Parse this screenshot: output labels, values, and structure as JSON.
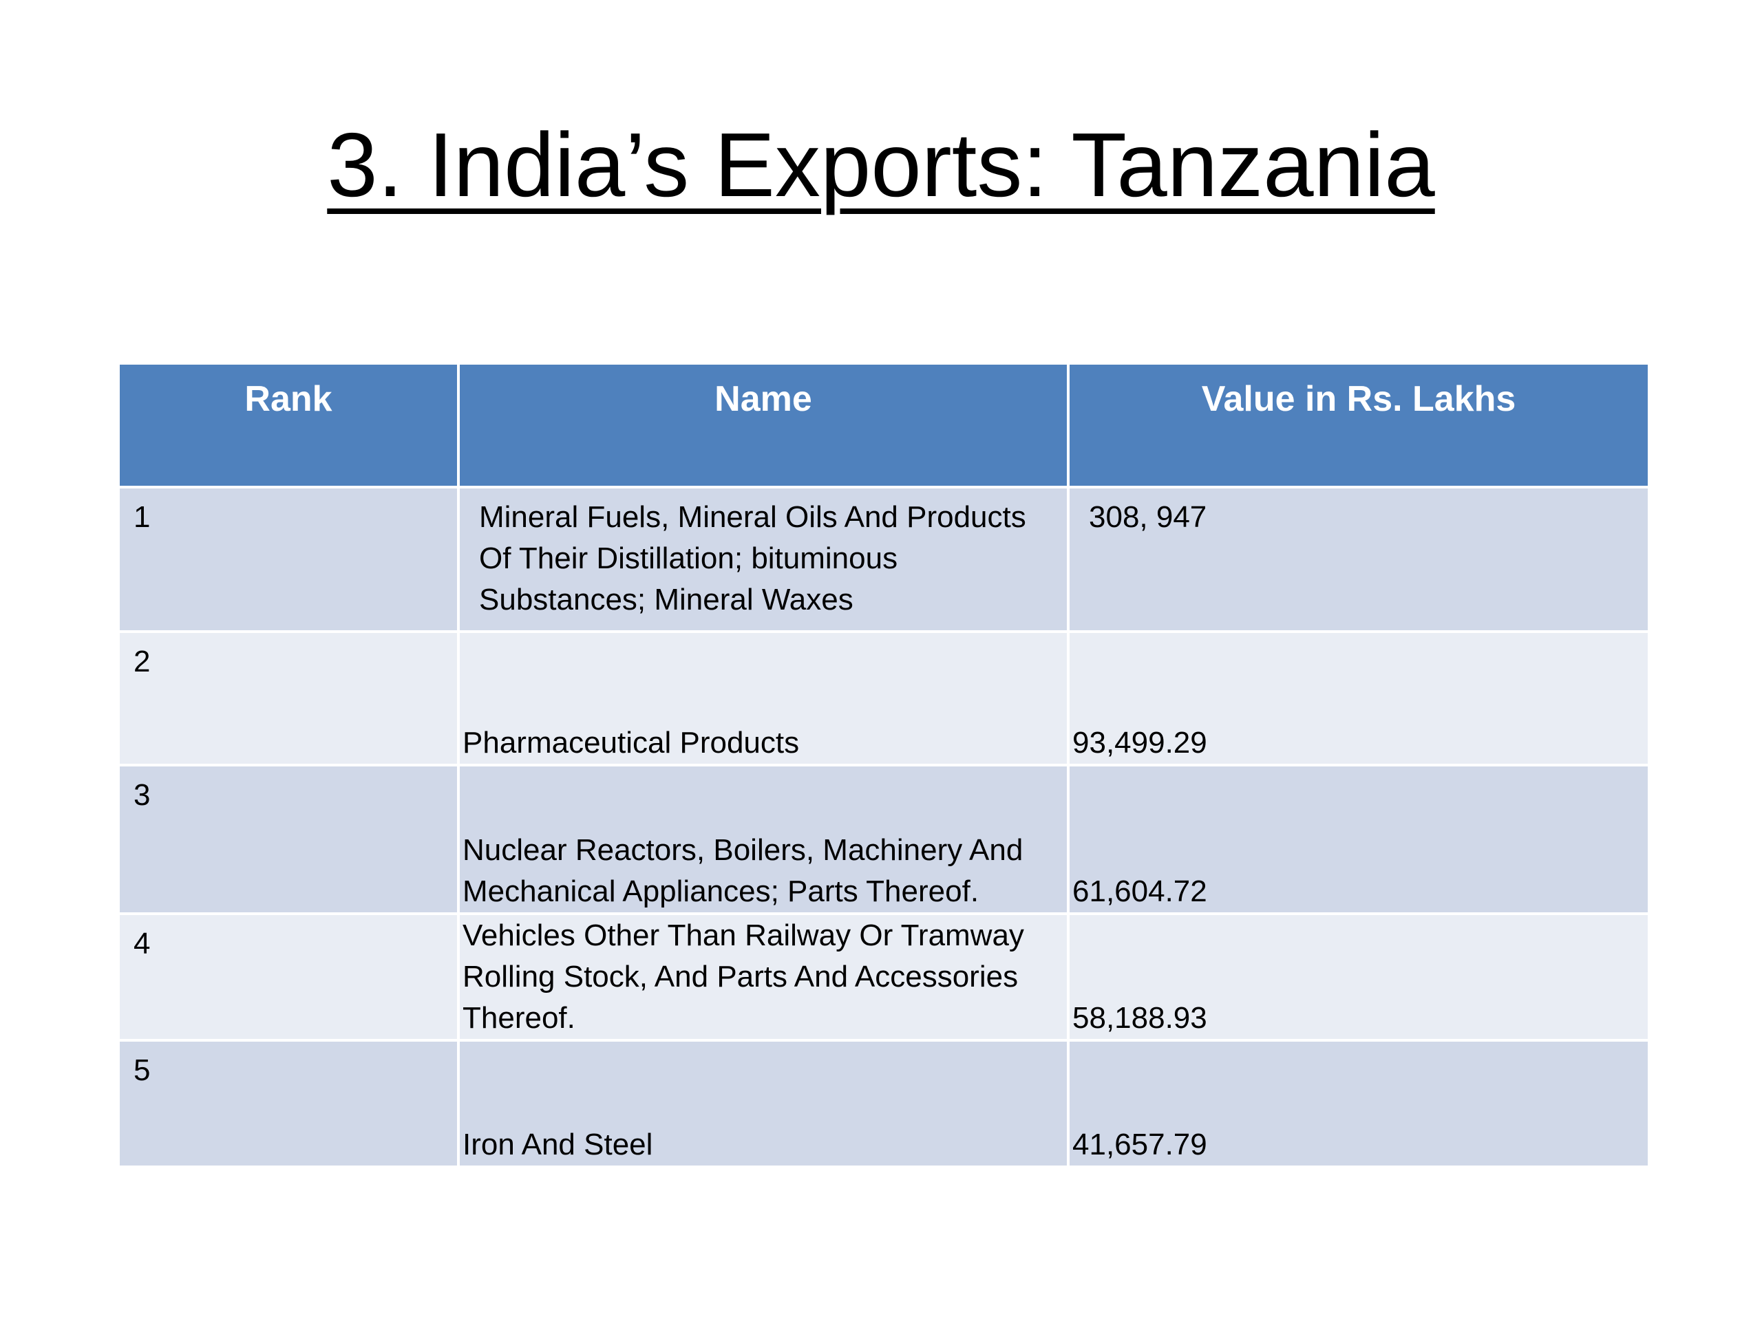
{
  "slide": {
    "title": "3. India’s Exports: Tanzania"
  },
  "table": {
    "headers": {
      "rank": "Rank",
      "name": "Name",
      "value": "Value in Rs. Lakhs"
    },
    "rows": [
      {
        "rank": "1",
        "name": "Mineral Fuels, Mineral Oils And Products Of Their Distillation; bituminous Substances; Mineral Waxes",
        "value": "308, 947"
      },
      {
        "rank": "2",
        "name": "Pharmaceutical Products",
        "value": "93,499.29"
      },
      {
        "rank": "3",
        "name": "Nuclear Reactors, Boilers, Machinery And Mechanical Appliances; Parts Thereof.",
        "value": "61,604.72"
      },
      {
        "rank": "4",
        "name": "Vehicles Other Than Railway Or Tramway Rolling Stock, And Parts And Accessories Thereof.",
        "value": "58,188.93"
      },
      {
        "rank": "5",
        "name": "Iron And Steel",
        "value": "41,657.79"
      }
    ]
  },
  "colors": {
    "header_bg": "#4f81bd",
    "row_band_dark": "#d0d8e8",
    "row_band_light": "#e9edf4"
  }
}
